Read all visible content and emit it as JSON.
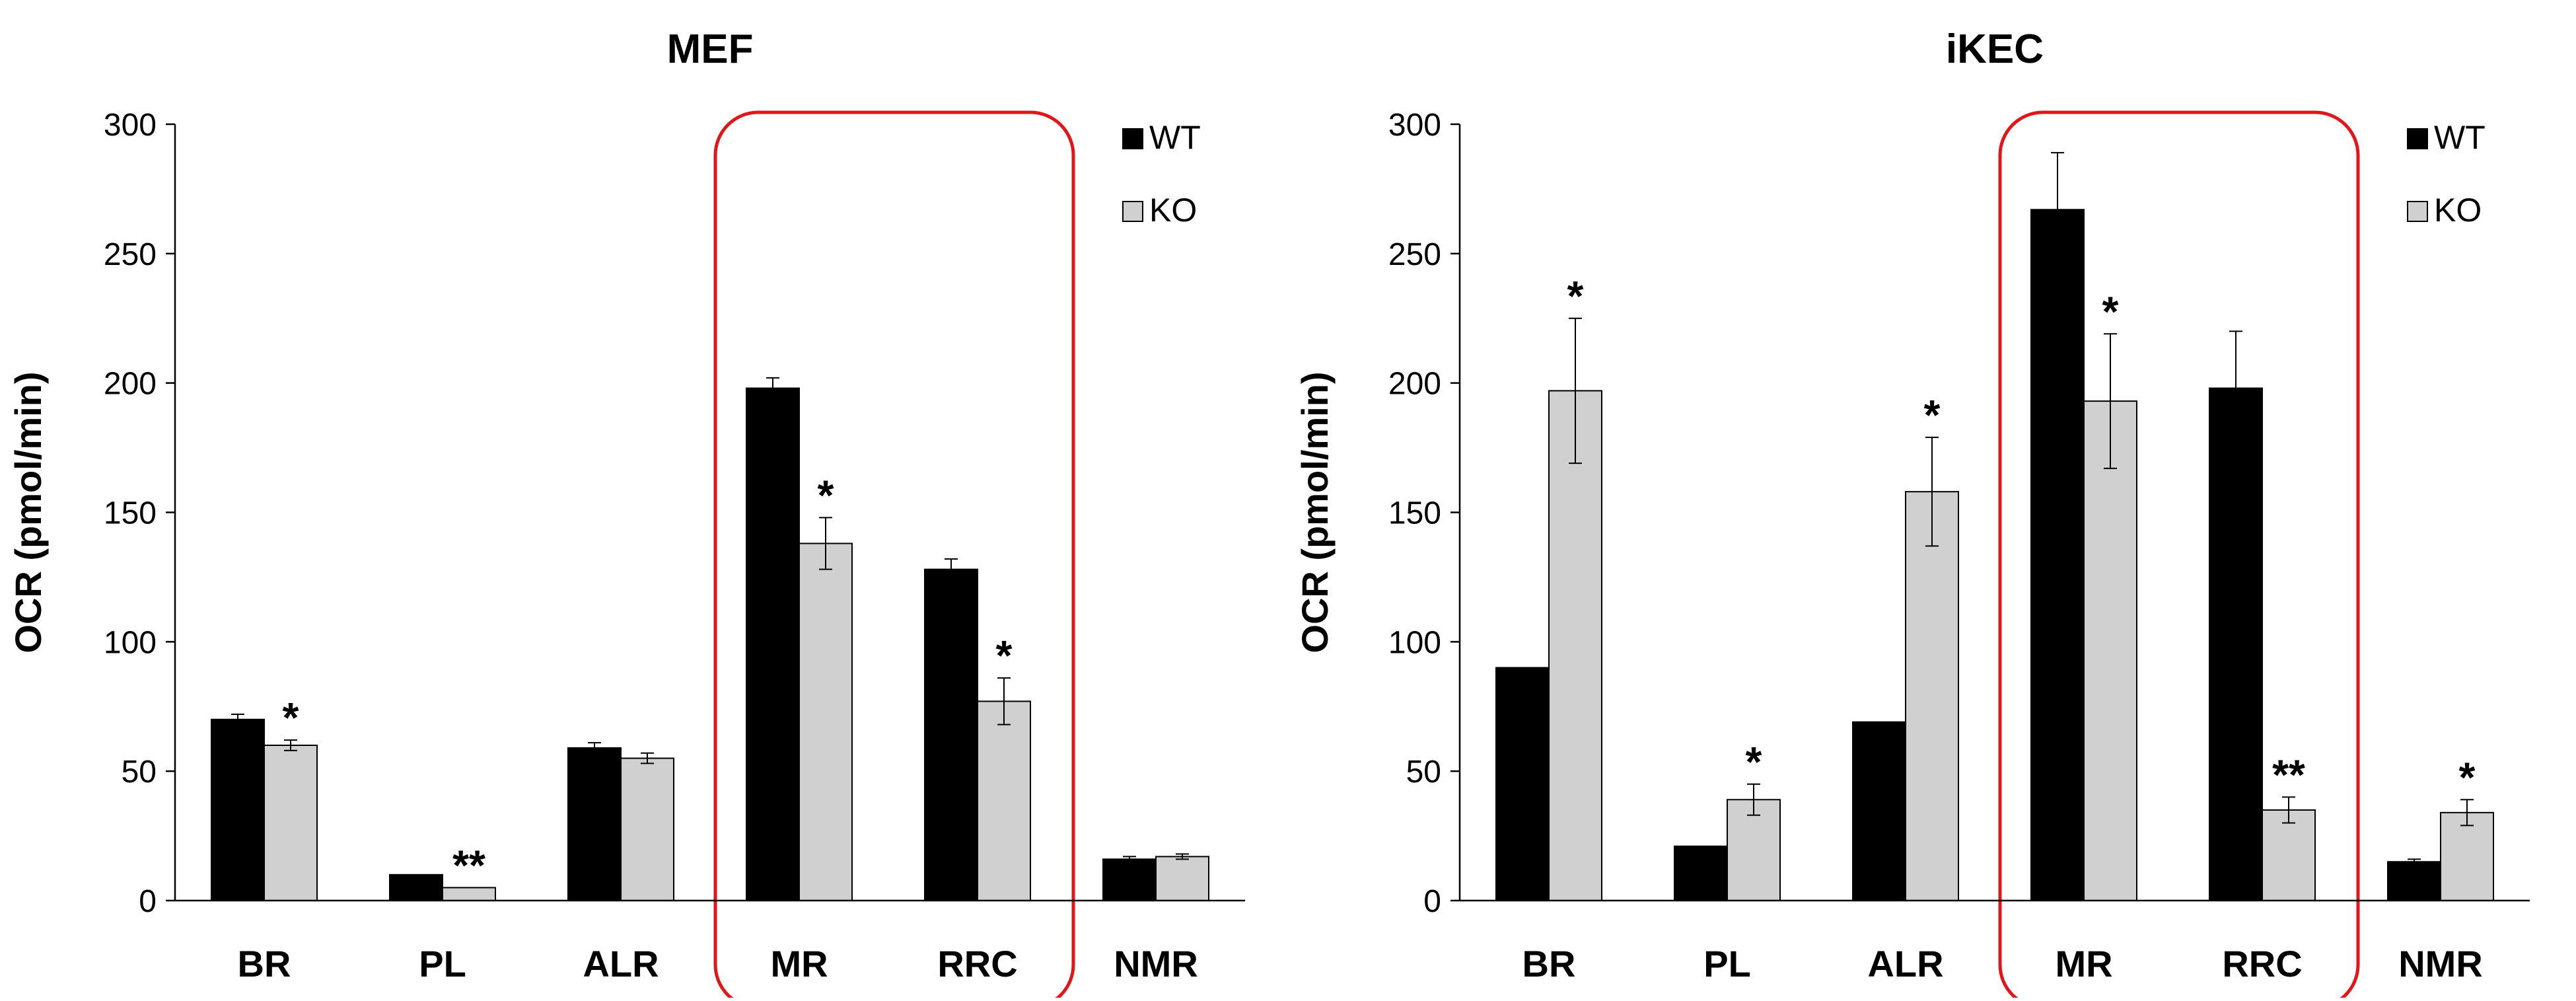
{
  "chart_data": [
    {
      "type": "bar",
      "title": "MEF",
      "xlabel": "",
      "ylabel": "OCR (pmol/min)",
      "ylim": [
        0,
        300
      ],
      "yticks": [
        0,
        50,
        100,
        150,
        200,
        250,
        300
      ],
      "categories": [
        "BR",
        "PL",
        "ALR",
        "MR",
        "RRC",
        "NMR"
      ],
      "series": [
        {
          "name": "WT",
          "color": "#000000",
          "values": [
            70,
            10,
            59,
            198,
            128,
            16
          ],
          "errors": [
            2,
            0,
            2,
            4,
            4,
            1
          ]
        },
        {
          "name": "KO",
          "color": "#d0d0d0",
          "values": [
            60,
            5,
            55,
            138,
            77,
            17
          ],
          "errors": [
            2,
            0,
            2,
            10,
            9,
            1
          ]
        }
      ],
      "significance": [
        {
          "category": "BR",
          "series": "KO",
          "label": "*"
        },
        {
          "category": "PL",
          "series": "KO",
          "label": "**"
        },
        {
          "category": "MR",
          "series": "KO",
          "label": "*"
        },
        {
          "category": "RRC",
          "series": "KO",
          "label": "*"
        }
      ],
      "highlight": [
        "MR",
        "RRC"
      ],
      "legend": "top-right",
      "grid": false
    },
    {
      "type": "bar",
      "title": "iKEC",
      "xlabel": "",
      "ylabel": "OCR (pmol/min)",
      "ylim": [
        0,
        300
      ],
      "yticks": [
        0,
        50,
        100,
        150,
        200,
        250,
        300
      ],
      "categories": [
        "BR",
        "PL",
        "ALR",
        "MR",
        "RRC",
        "NMR"
      ],
      "series": [
        {
          "name": "WT",
          "color": "#000000",
          "values": [
            90,
            21,
            69,
            267,
            198,
            15
          ],
          "errors": [
            0,
            0,
            0,
            22,
            22,
            1
          ]
        },
        {
          "name": "KO",
          "color": "#d0d0d0",
          "values": [
            197,
            39,
            158,
            193,
            35,
            34
          ],
          "errors": [
            28,
            6,
            21,
            26,
            5,
            5
          ]
        }
      ],
      "significance": [
        {
          "category": "BR",
          "series": "KO",
          "label": "*"
        },
        {
          "category": "PL",
          "series": "KO",
          "label": "*"
        },
        {
          "category": "ALR",
          "series": "KO",
          "label": "*"
        },
        {
          "category": "MR",
          "series": "KO",
          "label": "*"
        },
        {
          "category": "RRC",
          "series": "KO",
          "label": "**"
        },
        {
          "category": "NMR",
          "series": "KO",
          "label": "*"
        }
      ],
      "highlight": [
        "MR",
        "RRC"
      ],
      "legend": "top-right",
      "grid": false
    }
  ],
  "highlight_color": "#e0161b"
}
